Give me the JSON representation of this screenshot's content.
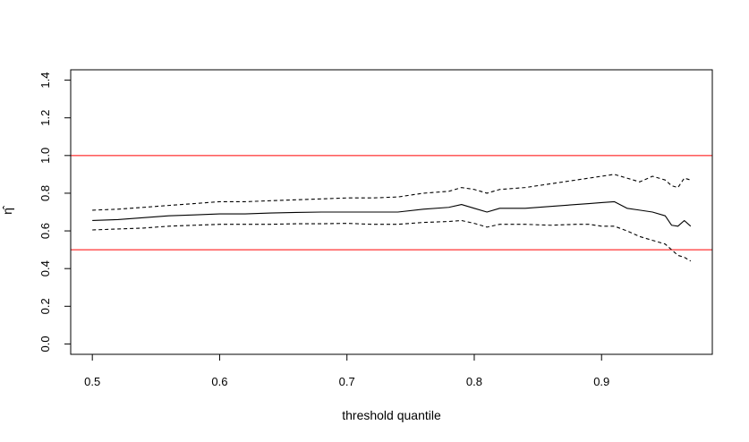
{
  "chart_data": {
    "type": "line",
    "title": "",
    "xlabel": "threshold quantile",
    "ylabel": "η̂",
    "xlim": [
      0.483,
      0.987
    ],
    "ylim": [
      -0.055,
      1.455
    ],
    "x_ticks": [
      0.5,
      0.6,
      0.7,
      0.8,
      0.9
    ],
    "x_tick_labels": [
      "0.5",
      "0.6",
      "0.7",
      "0.8",
      "0.9"
    ],
    "y_ticks": [
      0.0,
      0.2,
      0.4,
      0.6,
      0.8,
      1.0,
      1.2,
      1.4
    ],
    "y_tick_labels": [
      "0.0",
      "0.2",
      "0.4",
      "0.6",
      "0.8",
      "1.0",
      "1.2",
      "1.4"
    ],
    "grid": false,
    "reference_lines": [
      {
        "y": 1.0,
        "color": "#ff0000"
      },
      {
        "y": 0.5,
        "color": "#ff0000"
      }
    ],
    "x": [
      0.5,
      0.52,
      0.54,
      0.56,
      0.58,
      0.6,
      0.62,
      0.64,
      0.66,
      0.68,
      0.7,
      0.72,
      0.74,
      0.76,
      0.78,
      0.79,
      0.8,
      0.81,
      0.82,
      0.84,
      0.86,
      0.88,
      0.89,
      0.9,
      0.91,
      0.92,
      0.93,
      0.94,
      0.95,
      0.955,
      0.96,
      0.965,
      0.97
    ],
    "series": [
      {
        "style": "dashed",
        "color": "#000000",
        "values": [
          0.71,
          0.715,
          0.725,
          0.735,
          0.745,
          0.755,
          0.755,
          0.76,
          0.765,
          0.77,
          0.775,
          0.775,
          0.78,
          0.8,
          0.81,
          0.83,
          0.82,
          0.8,
          0.82,
          0.83,
          0.85,
          0.87,
          0.88,
          0.89,
          0.9,
          0.88,
          0.86,
          0.89,
          0.87,
          0.84,
          0.83,
          0.88,
          0.87
        ]
      },
      {
        "style": "solid",
        "color": "#000000",
        "values": [
          0.655,
          0.66,
          0.67,
          0.68,
          0.685,
          0.69,
          0.69,
          0.695,
          0.698,
          0.7,
          0.7,
          0.7,
          0.7,
          0.715,
          0.725,
          0.74,
          0.72,
          0.7,
          0.72,
          0.72,
          0.73,
          0.74,
          0.745,
          0.75,
          0.755,
          0.72,
          0.71,
          0.7,
          0.68,
          0.63,
          0.625,
          0.655,
          0.625
        ]
      },
      {
        "style": "dashed",
        "color": "#000000",
        "values": [
          0.605,
          0.61,
          0.615,
          0.625,
          0.63,
          0.635,
          0.635,
          0.635,
          0.638,
          0.638,
          0.64,
          0.635,
          0.635,
          0.645,
          0.65,
          0.655,
          0.64,
          0.62,
          0.635,
          0.635,
          0.63,
          0.635,
          0.635,
          0.625,
          0.625,
          0.6,
          0.57,
          0.55,
          0.53,
          0.5,
          0.47,
          0.46,
          0.44
        ]
      }
    ]
  }
}
